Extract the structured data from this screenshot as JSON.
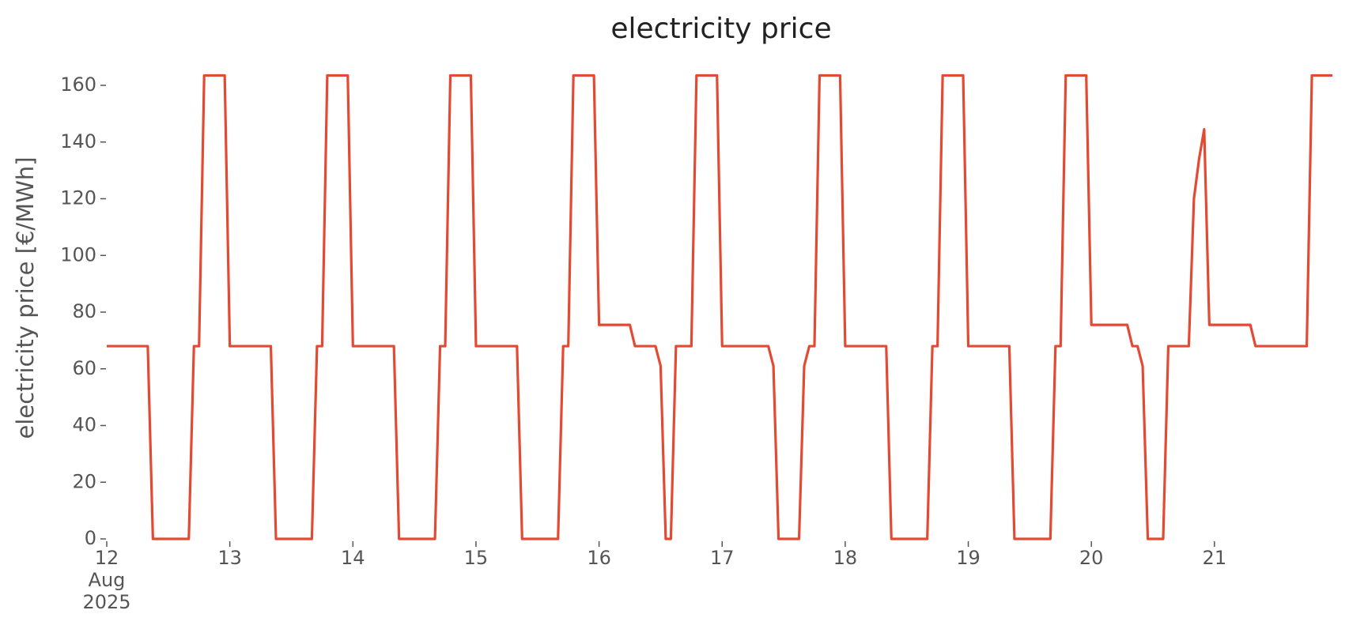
{
  "chart_data": {
    "type": "line",
    "title": "electricity price",
    "ylabel": "electricity price [€/MWh]",
    "color": "#E24A33",
    "grid": false,
    "xlim": [
      "2025-08-12T00:00",
      "2025-08-21T23:00"
    ],
    "xticks": [
      {
        "value": "2025-08-12T00:00",
        "label": "12\nAug\n2025"
      },
      {
        "value": "2025-08-13T00:00",
        "label": "13"
      },
      {
        "value": "2025-08-14T00:00",
        "label": "14"
      },
      {
        "value": "2025-08-15T00:00",
        "label": "15"
      },
      {
        "value": "2025-08-16T00:00",
        "label": "16"
      },
      {
        "value": "2025-08-17T00:00",
        "label": "17"
      },
      {
        "value": "2025-08-18T00:00",
        "label": "18"
      },
      {
        "value": "2025-08-19T00:00",
        "label": "19"
      },
      {
        "value": "2025-08-20T00:00",
        "label": "20"
      },
      {
        "value": "2025-08-21T00:00",
        "label": "21"
      }
    ],
    "ylim": [
      0,
      163.5
    ],
    "yticks": [
      0,
      20,
      40,
      60,
      80,
      100,
      120,
      140,
      160
    ],
    "x": [
      "2025-08-12T00:00",
      "2025-08-12T01:00",
      "2025-08-12T02:00",
      "2025-08-12T03:00",
      "2025-08-12T04:00",
      "2025-08-12T05:00",
      "2025-08-12T06:00",
      "2025-08-12T07:00",
      "2025-08-12T08:00",
      "2025-08-12T09:00",
      "2025-08-12T10:00",
      "2025-08-12T11:00",
      "2025-08-12T12:00",
      "2025-08-12T13:00",
      "2025-08-12T14:00",
      "2025-08-12T15:00",
      "2025-08-12T16:00",
      "2025-08-12T17:00",
      "2025-08-12T18:00",
      "2025-08-12T19:00",
      "2025-08-12T20:00",
      "2025-08-12T21:00",
      "2025-08-12T22:00",
      "2025-08-12T23:00",
      "2025-08-13T00:00",
      "2025-08-13T01:00",
      "2025-08-13T02:00",
      "2025-08-13T03:00",
      "2025-08-13T04:00",
      "2025-08-13T05:00",
      "2025-08-13T06:00",
      "2025-08-13T07:00",
      "2025-08-13T08:00",
      "2025-08-13T09:00",
      "2025-08-13T10:00",
      "2025-08-13T11:00",
      "2025-08-13T12:00",
      "2025-08-13T13:00",
      "2025-08-13T14:00",
      "2025-08-13T15:00",
      "2025-08-13T16:00",
      "2025-08-13T17:00",
      "2025-08-13T18:00",
      "2025-08-13T19:00",
      "2025-08-13T20:00",
      "2025-08-13T21:00",
      "2025-08-13T22:00",
      "2025-08-13T23:00",
      "2025-08-14T00:00",
      "2025-08-14T01:00",
      "2025-08-14T02:00",
      "2025-08-14T03:00",
      "2025-08-14T04:00",
      "2025-08-14T05:00",
      "2025-08-14T06:00",
      "2025-08-14T07:00",
      "2025-08-14T08:00",
      "2025-08-14T09:00",
      "2025-08-14T10:00",
      "2025-08-14T11:00",
      "2025-08-14T12:00",
      "2025-08-14T13:00",
      "2025-08-14T14:00",
      "2025-08-14T15:00",
      "2025-08-14T16:00",
      "2025-08-14T17:00",
      "2025-08-14T18:00",
      "2025-08-14T19:00",
      "2025-08-14T20:00",
      "2025-08-14T21:00",
      "2025-08-14T22:00",
      "2025-08-14T23:00",
      "2025-08-15T00:00",
      "2025-08-15T01:00",
      "2025-08-15T02:00",
      "2025-08-15T03:00",
      "2025-08-15T04:00",
      "2025-08-15T05:00",
      "2025-08-15T06:00",
      "2025-08-15T07:00",
      "2025-08-15T08:00",
      "2025-08-15T09:00",
      "2025-08-15T10:00",
      "2025-08-15T11:00",
      "2025-08-15T12:00",
      "2025-08-15T13:00",
      "2025-08-15T14:00",
      "2025-08-15T15:00",
      "2025-08-15T16:00",
      "2025-08-15T17:00",
      "2025-08-15T18:00",
      "2025-08-15T19:00",
      "2025-08-15T20:00",
      "2025-08-15T21:00",
      "2025-08-15T22:00",
      "2025-08-15T23:00",
      "2025-08-16T00:00",
      "2025-08-16T01:00",
      "2025-08-16T02:00",
      "2025-08-16T03:00",
      "2025-08-16T04:00",
      "2025-08-16T05:00",
      "2025-08-16T06:00",
      "2025-08-16T07:00",
      "2025-08-16T08:00",
      "2025-08-16T09:00",
      "2025-08-16T10:00",
      "2025-08-16T11:00",
      "2025-08-16T12:00",
      "2025-08-16T13:00",
      "2025-08-16T14:00",
      "2025-08-16T15:00",
      "2025-08-16T16:00",
      "2025-08-16T17:00",
      "2025-08-16T18:00",
      "2025-08-16T19:00",
      "2025-08-16T20:00",
      "2025-08-16T21:00",
      "2025-08-16T22:00",
      "2025-08-16T23:00",
      "2025-08-17T00:00",
      "2025-08-17T01:00",
      "2025-08-17T02:00",
      "2025-08-17T03:00",
      "2025-08-17T04:00",
      "2025-08-17T05:00",
      "2025-08-17T06:00",
      "2025-08-17T07:00",
      "2025-08-17T08:00",
      "2025-08-17T09:00",
      "2025-08-17T10:00",
      "2025-08-17T11:00",
      "2025-08-17T12:00",
      "2025-08-17T13:00",
      "2025-08-17T14:00",
      "2025-08-17T15:00",
      "2025-08-17T16:00",
      "2025-08-17T17:00",
      "2025-08-17T18:00",
      "2025-08-17T19:00",
      "2025-08-17T20:00",
      "2025-08-17T21:00",
      "2025-08-17T22:00",
      "2025-08-17T23:00",
      "2025-08-18T00:00",
      "2025-08-18T01:00",
      "2025-08-18T02:00",
      "2025-08-18T03:00",
      "2025-08-18T04:00",
      "2025-08-18T05:00",
      "2025-08-18T06:00",
      "2025-08-18T07:00",
      "2025-08-18T08:00",
      "2025-08-18T09:00",
      "2025-08-18T10:00",
      "2025-08-18T11:00",
      "2025-08-18T12:00",
      "2025-08-18T13:00",
      "2025-08-18T14:00",
      "2025-08-18T15:00",
      "2025-08-18T16:00",
      "2025-08-18T17:00",
      "2025-08-18T18:00",
      "2025-08-18T19:00",
      "2025-08-18T20:00",
      "2025-08-18T21:00",
      "2025-08-18T22:00",
      "2025-08-18T23:00",
      "2025-08-19T00:00",
      "2025-08-19T01:00",
      "2025-08-19T02:00",
      "2025-08-19T03:00",
      "2025-08-19T04:00",
      "2025-08-19T05:00",
      "2025-08-19T06:00",
      "2025-08-19T07:00",
      "2025-08-19T08:00",
      "2025-08-19T09:00",
      "2025-08-19T10:00",
      "2025-08-19T11:00",
      "2025-08-19T12:00",
      "2025-08-19T13:00",
      "2025-08-19T14:00",
      "2025-08-19T15:00",
      "2025-08-19T16:00",
      "2025-08-19T17:00",
      "2025-08-19T18:00",
      "2025-08-19T19:00",
      "2025-08-19T20:00",
      "2025-08-19T21:00",
      "2025-08-19T22:00",
      "2025-08-19T23:00",
      "2025-08-20T00:00",
      "2025-08-20T01:00",
      "2025-08-20T02:00",
      "2025-08-20T03:00",
      "2025-08-20T04:00",
      "2025-08-20T05:00",
      "2025-08-20T06:00",
      "2025-08-20T07:00",
      "2025-08-20T08:00",
      "2025-08-20T09:00",
      "2025-08-20T10:00",
      "2025-08-20T11:00",
      "2025-08-20T12:00",
      "2025-08-20T13:00",
      "2025-08-20T14:00",
      "2025-08-20T15:00",
      "2025-08-20T16:00",
      "2025-08-20T17:00",
      "2025-08-20T18:00",
      "2025-08-20T19:00",
      "2025-08-20T20:00",
      "2025-08-20T21:00",
      "2025-08-20T22:00",
      "2025-08-20T23:00",
      "2025-08-21T00:00",
      "2025-08-21T01:00",
      "2025-08-21T02:00",
      "2025-08-21T03:00",
      "2025-08-21T04:00",
      "2025-08-21T05:00",
      "2025-08-21T06:00",
      "2025-08-21T07:00",
      "2025-08-21T08:00",
      "2025-08-21T09:00",
      "2025-08-21T10:00",
      "2025-08-21T11:00",
      "2025-08-21T12:00",
      "2025-08-21T13:00",
      "2025-08-21T14:00",
      "2025-08-21T15:00",
      "2025-08-21T16:00",
      "2025-08-21T17:00",
      "2025-08-21T18:00",
      "2025-08-21T19:00",
      "2025-08-21T20:00",
      "2025-08-21T21:00",
      "2025-08-21T22:00",
      "2025-08-21T23:00"
    ],
    "values": [
      68,
      68,
      68,
      68,
      68,
      68,
      68,
      68,
      68,
      0,
      0,
      0,
      0,
      0,
      0,
      0,
      0,
      68,
      68,
      163.5,
      163.5,
      163.5,
      163.5,
      163.5,
      68,
      68,
      68,
      68,
      68,
      68,
      68,
      68,
      68,
      0,
      0,
      0,
      0,
      0,
      0,
      0,
      0,
      68,
      68,
      163.5,
      163.5,
      163.5,
      163.5,
      163.5,
      68,
      68,
      68,
      68,
      68,
      68,
      68,
      68,
      68,
      0,
      0,
      0,
      0,
      0,
      0,
      0,
      0,
      68,
      68,
      163.5,
      163.5,
      163.5,
      163.5,
      163.5,
      68,
      68,
      68,
      68,
      68,
      68,
      68,
      68,
      68,
      0,
      0,
      0,
      0,
      0,
      0,
      0,
      0,
      68,
      68,
      163.5,
      163.5,
      163.5,
      163.5,
      163.5,
      75.5,
      75.5,
      75.5,
      75.5,
      75.5,
      75.5,
      75.5,
      68,
      68,
      68,
      68,
      68,
      61,
      0,
      0,
      68,
      68,
      68,
      68,
      163.5,
      163.5,
      163.5,
      163.5,
      163.5,
      68,
      68,
      68,
      68,
      68,
      68,
      68,
      68,
      68,
      68,
      61,
      0,
      0,
      0,
      0,
      0,
      61,
      68,
      68,
      163.5,
      163.5,
      163.5,
      163.5,
      163.5,
      68,
      68,
      68,
      68,
      68,
      68,
      68,
      68,
      68,
      0,
      0,
      0,
      0,
      0,
      0,
      0,
      0,
      68,
      68,
      163.5,
      163.5,
      163.5,
      163.5,
      163.5,
      68,
      68,
      68,
      68,
      68,
      68,
      68,
      68,
      68,
      0,
      0,
      0,
      0,
      0,
      0,
      0,
      0,
      68,
      68,
      163.5,
      163.5,
      163.5,
      163.5,
      163.5,
      75.5,
      75.5,
      75.5,
      75.5,
      75.5,
      75.5,
      75.5,
      75.5,
      68,
      68,
      61,
      0,
      0,
      0,
      0,
      68,
      68,
      68,
      68,
      68,
      120,
      134,
      144.5,
      75.5,
      75.5,
      75.5,
      75.5,
      75.5,
      75.5,
      75.5,
      75.5,
      75.5,
      68,
      68,
      68,
      68,
      68,
      68,
      68,
      68,
      68,
      68,
      68,
      163.5,
      163.5,
      163.5,
      163.5,
      163.5
    ]
  }
}
